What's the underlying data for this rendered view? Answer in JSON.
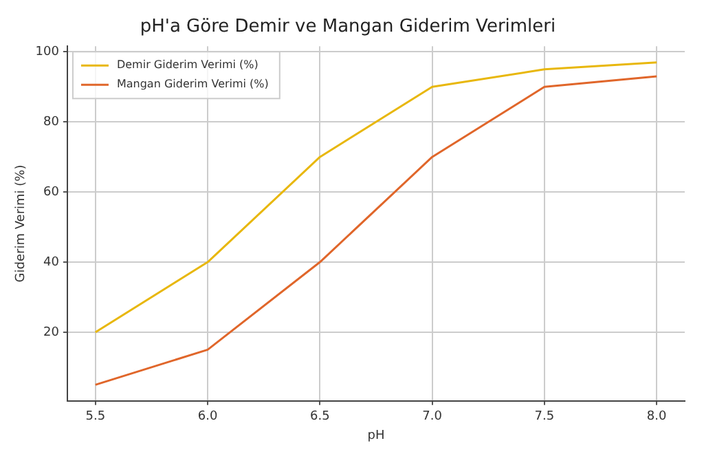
{
  "chart_data": {
    "type": "line",
    "title": "pH'a Göre Demir ve Mangan Giderim Verimleri",
    "xlabel": "pH",
    "ylabel": "Giderim Verimi (%)",
    "x": [
      5.5,
      6.0,
      6.5,
      7.0,
      7.5,
      8.0
    ],
    "series": [
      {
        "name": "Demir Giderim Verimi (%)",
        "color": "#e8b70c",
        "values": [
          20,
          40,
          70,
          90,
          95,
          97
        ]
      },
      {
        "name": "Mangan Giderim Verimi (%)",
        "color": "#e0662a",
        "values": [
          5,
          15,
          40,
          70,
          90,
          93
        ]
      }
    ],
    "xlim": [
      5.375,
      8.125
    ],
    "xticks": [
      {
        "value": 5.5,
        "label": "5.5"
      },
      {
        "value": 6.0,
        "label": "6.0"
      },
      {
        "value": 6.5,
        "label": "6.5"
      },
      {
        "value": 7.0,
        "label": "7.0"
      },
      {
        "value": 7.5,
        "label": "7.5"
      },
      {
        "value": 8.0,
        "label": "8.0"
      }
    ],
    "ylim": [
      0.4,
      101.6
    ],
    "yticks": [
      20,
      40,
      60,
      80,
      100
    ],
    "grid": true,
    "legend": "top left",
    "marker": "none",
    "line_style": "solid"
  }
}
